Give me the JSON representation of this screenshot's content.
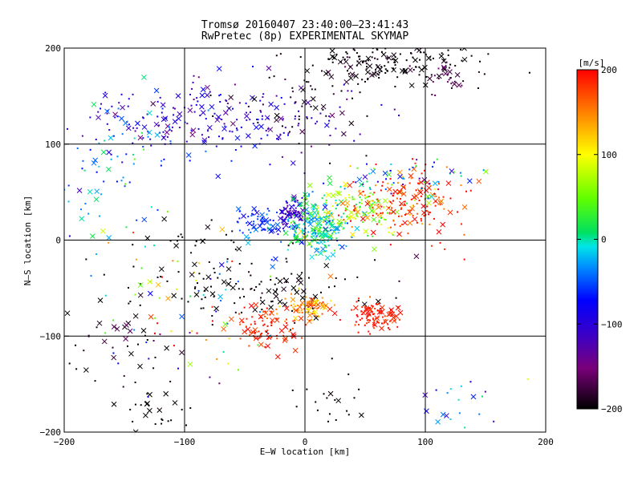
{
  "chart_data": {
    "type": "scatter",
    "title": "Tromsø 20160407 23:40:00–23:41:43",
    "subtitle": "RwPretec (8p) EXPERIMENTAL SKYMAP",
    "xlabel": "E–W location [km]",
    "ylabel": "N–S location [km]",
    "xlim": [
      -200,
      200
    ],
    "ylim": [
      -200,
      200
    ],
    "x_ticks": [
      "−200",
      "−100",
      "0",
      "100",
      "200"
    ],
    "y_ticks": [
      "−200",
      "−100",
      "0",
      "100",
      "200"
    ],
    "grid": true,
    "grid_values": [
      -100,
      0,
      100
    ],
    "colorbar": {
      "unit": "[m/s]",
      "range": [
        -200,
        200
      ],
      "ticks": [
        "200",
        "100",
        "0",
        "−100",
        "−200"
      ],
      "tick_values": [
        200,
        100,
        0,
        -100,
        -200
      ],
      "colormap": "rainbow-black-violet-blue-cyan-green-yellow-red"
    },
    "marker_types": [
      "dot",
      "x"
    ],
    "clusters": [
      {
        "cx": -70,
        "cy": 125,
        "sx": 55,
        "sy": 20,
        "n": 220,
        "v": -105,
        "sv": 25
      },
      {
        "cx": -150,
        "cy": 110,
        "sx": 40,
        "sy": 30,
        "n": 60,
        "v": -40,
        "sv": 40
      },
      {
        "cx": -170,
        "cy": 60,
        "sx": 25,
        "sy": 40,
        "n": 40,
        "v": -20,
        "sv": 40
      },
      {
        "cx": 70,
        "cy": 185,
        "sx": 35,
        "sy": 12,
        "n": 160,
        "v": -200,
        "sv": 10
      },
      {
        "cx": 120,
        "cy": 170,
        "sx": 6,
        "sy": 8,
        "n": 25,
        "v": -170,
        "sv": 15
      },
      {
        "cx": 10,
        "cy": 150,
        "sx": 30,
        "sy": 25,
        "n": 70,
        "v": -195,
        "sv": 15
      },
      {
        "cx": -10,
        "cy": 25,
        "sx": 6,
        "sy": 8,
        "n": 80,
        "v": -110,
        "sv": 15
      },
      {
        "cx": -40,
        "cy": 20,
        "sx": 10,
        "sy": 8,
        "n": 60,
        "v": -60,
        "sv": 15
      },
      {
        "cx": 10,
        "cy": 15,
        "sx": 15,
        "sy": 15,
        "n": 200,
        "v": -5,
        "sv": 30
      },
      {
        "cx": 40,
        "cy": 30,
        "sx": 20,
        "sy": 15,
        "n": 120,
        "v": 60,
        "sv": 35
      },
      {
        "cx": 85,
        "cy": 40,
        "sx": 25,
        "sy": 18,
        "n": 180,
        "v": 180,
        "sv": 30
      },
      {
        "cx": 75,
        "cy": 65,
        "sx": 30,
        "sy": 10,
        "n": 60,
        "v": -30,
        "sv": 60
      },
      {
        "cx": -20,
        "cy": -50,
        "sx": 40,
        "sy": 20,
        "n": 90,
        "v": -200,
        "sv": 10
      },
      {
        "cx": -30,
        "cy": -90,
        "sx": 14,
        "sy": 10,
        "n": 90,
        "v": 185,
        "sv": 15
      },
      {
        "cx": 5,
        "cy": -70,
        "sx": 10,
        "sy": 8,
        "n": 90,
        "v": 150,
        "sv": 30
      },
      {
        "cx": 60,
        "cy": -78,
        "sx": 10,
        "sy": 8,
        "n": 100,
        "v": 190,
        "sv": 12
      },
      {
        "cx": -150,
        "cy": -110,
        "sx": 25,
        "sy": 30,
        "n": 45,
        "v": -190,
        "sv": 20
      },
      {
        "cx": -130,
        "cy": -180,
        "sx": 20,
        "sy": 15,
        "n": 25,
        "v": -200,
        "sv": 5
      },
      {
        "cx": 20,
        "cy": -170,
        "sx": 20,
        "sy": 15,
        "n": 20,
        "v": -200,
        "sv": 5
      },
      {
        "cx": 130,
        "cy": -170,
        "sx": 20,
        "sy": 15,
        "n": 20,
        "v": -60,
        "sv": 50
      },
      {
        "cx": -90,
        "cy": -20,
        "sx": 25,
        "sy": 25,
        "n": 55,
        "v": -200,
        "sv": 5
      },
      {
        "cx": -100,
        "cy": -60,
        "sx": 40,
        "sy": 40,
        "n": 80,
        "v": 0,
        "sv": 140
      }
    ]
  }
}
